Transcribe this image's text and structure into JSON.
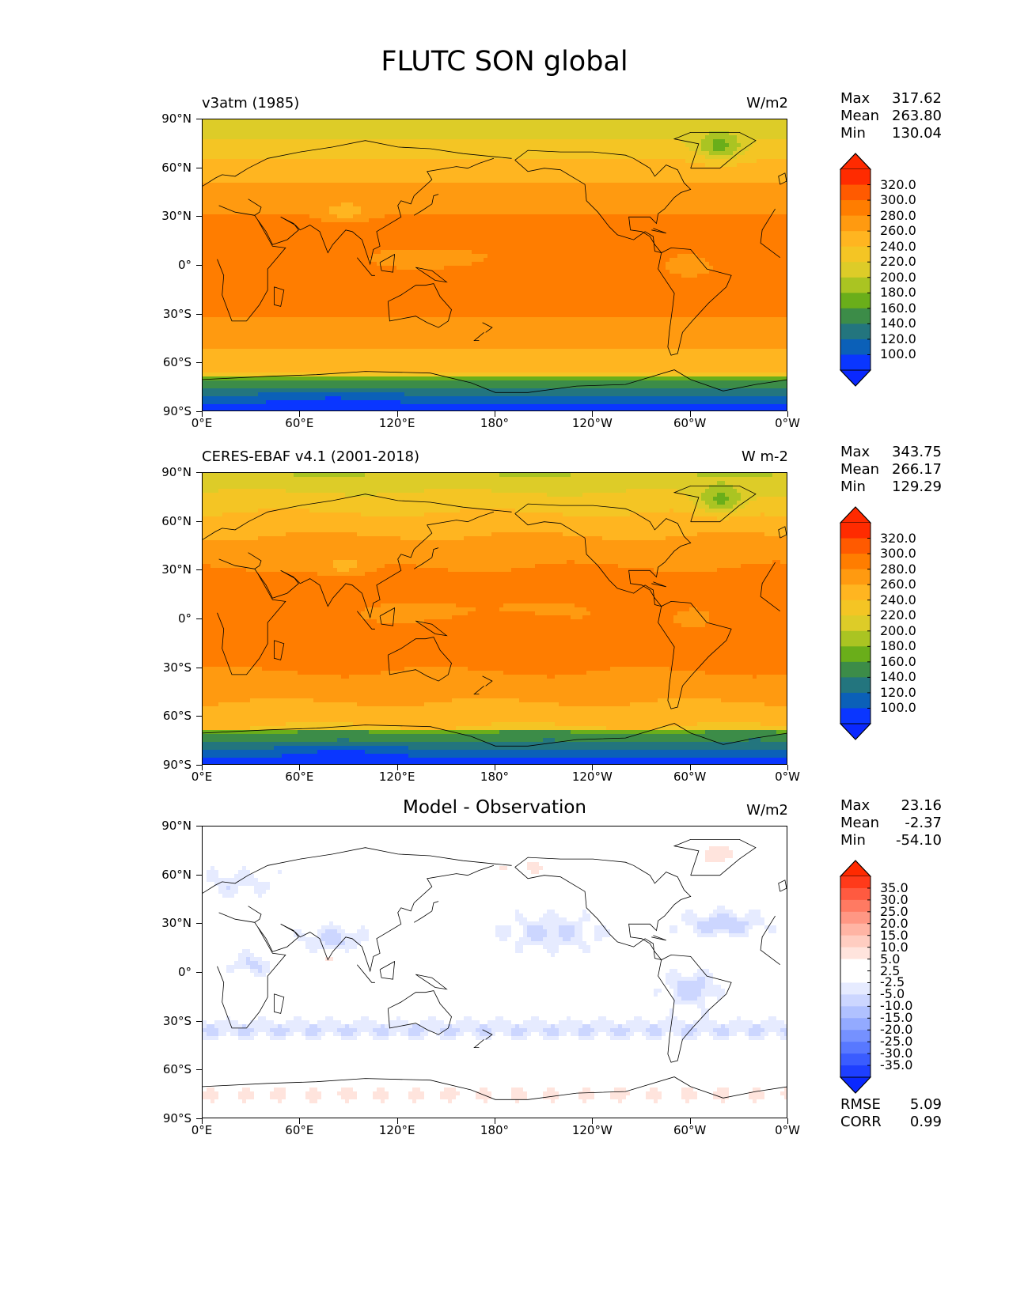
{
  "title": "FLUTC SON global",
  "x_ticks": [
    "0°E",
    "60°E",
    "120°E",
    "180°",
    "120°W",
    "60°W",
    "0°W"
  ],
  "y_ticks": [
    "90°N",
    "60°N",
    "30°N",
    "0°",
    "30°S",
    "60°S",
    "90°S"
  ],
  "panels": [
    {
      "left_title": "v3atm (1985)",
      "center_title": "",
      "unit": "W/m2",
      "stats": {
        "max_label": "Max",
        "max": "317.62",
        "mean_label": "Mean",
        "mean": "263.80",
        "min_label": "Min",
        "min": "130.04"
      },
      "colorbar": {
        "labels": [
          "320.0",
          "300.0",
          "280.0",
          "260.0",
          "240.0",
          "220.0",
          "200.0",
          "180.0",
          "160.0",
          "140.0",
          "120.0",
          "100.0"
        ],
        "colors": [
          "#ff2b00",
          "#ff5a00",
          "#ff7d00",
          "#ff9a10",
          "#ffb520",
          "#f4c524",
          "#ddcc28",
          "#aac422",
          "#6aae1a",
          "#3c8c48",
          "#23757e",
          "#0b60b8",
          "#0a36ff"
        ],
        "top_color": "#ff2a00",
        "bottom_color": "#0a28ff"
      }
    },
    {
      "left_title": "CERES-EBAF v4.1 (2001-2018)",
      "center_title": "",
      "unit": "W m-2",
      "stats": {
        "max_label": "Max",
        "max": "343.75",
        "mean_label": "Mean",
        "mean": "266.17",
        "min_label": "Min",
        "min": "129.29"
      },
      "colorbar": {
        "labels": [
          "320.0",
          "300.0",
          "280.0",
          "260.0",
          "240.0",
          "220.0",
          "200.0",
          "180.0",
          "160.0",
          "140.0",
          "120.0",
          "100.0"
        ],
        "colors": [
          "#ff2b00",
          "#ff5a00",
          "#ff7d00",
          "#ff9a10",
          "#ffb520",
          "#f4c524",
          "#ddcc28",
          "#aac422",
          "#6aae1a",
          "#3c8c48",
          "#23757e",
          "#0b60b8",
          "#0a36ff"
        ],
        "top_color": "#ff2a00",
        "bottom_color": "#0a28ff"
      }
    },
    {
      "left_title": "",
      "center_title": "Model - Observation",
      "unit": "W/m2",
      "stats": {
        "max_label": "Max",
        "max": "23.16",
        "mean_label": "Mean",
        "mean": "-2.37",
        "min_label": "Min",
        "min": "-54.10"
      },
      "colorbar": {
        "labels": [
          "35.0",
          "30.0",
          "25.0",
          "20.0",
          "15.0",
          "10.0",
          "5.0",
          "2.5",
          "-2.5",
          "-5.0",
          "-10.0",
          "-15.0",
          "-20.0",
          "-25.0",
          "-30.0",
          "-35.0"
        ],
        "colors": [
          "#ff3a1a",
          "#ff5a40",
          "#ff7a62",
          "#ff9784",
          "#ffb4a4",
          "#ffcdc1",
          "#ffe4dd",
          "#ffffff",
          "#ffffff",
          "#e6ebff",
          "#ccd6ff",
          "#b0c1ff",
          "#93aaff",
          "#7591ff",
          "#5878ff",
          "#3a5cff",
          "#1e3fff"
        ],
        "top_color": "#ff2a00",
        "bottom_color": "#0a28ff"
      },
      "extra": {
        "rmse_label": "RMSE",
        "rmse": "5.09",
        "corr_label": "CORR",
        "corr": "0.99"
      }
    }
  ]
}
